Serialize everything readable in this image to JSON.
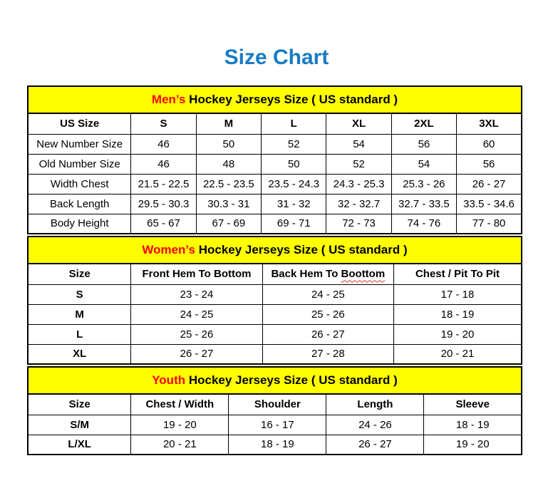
{
  "page_title": "Size Chart",
  "colors": {
    "title_blue": "#187bc4",
    "band_yellow": "#ffff00",
    "accent_red": "#ff0000",
    "squiggle_red": "#e03131",
    "border_black": "#000000"
  },
  "sections": {
    "mens": {
      "band_highlight": "Men’s",
      "band_rest": " Hockey Jerseys Size ( US standard )",
      "header": [
        "US Size",
        "S",
        "M",
        "L",
        "XL",
        "2XL",
        "3XL"
      ],
      "rows": [
        {
          "label": "New Number Size",
          "values": [
            "46",
            "50",
            "52",
            "54",
            "56",
            "60"
          ]
        },
        {
          "label": "Old Number Size",
          "values": [
            "46",
            "48",
            "50",
            "52",
            "54",
            "56"
          ]
        },
        {
          "label": "Width Chest",
          "values": [
            "21.5 - 22.5",
            "22.5 - 23.5",
            "23.5 - 24.3",
            "24.3 - 25.3",
            "25.3 - 26",
            "26 - 27"
          ]
        },
        {
          "label": "Back Length",
          "values": [
            "29.5 - 30.3",
            "30.3 - 31",
            "31 - 32",
            "32 - 32.7",
            "32.7 - 33.5",
            "33.5 - 34.6"
          ]
        },
        {
          "label": "Body Height",
          "values": [
            "65 - 67",
            "67 - 69",
            "69 - 71",
            "72 - 73",
            "74 - 76",
            "77 - 80"
          ]
        }
      ]
    },
    "womens": {
      "band_highlight": "Women’s",
      "band_rest": " Hockey Jerseys Size ( US standard )",
      "header_size": "Size",
      "header_front": "Front Hem To Bottom",
      "header_back_prefix": "Back Hem To ",
      "header_back_misspelled": "Boottom",
      "header_chest": "Chest / Pit To Pit",
      "rows": [
        {
          "label": "S",
          "values": [
            "23 - 24",
            "24 - 25",
            "17 - 18"
          ]
        },
        {
          "label": "M",
          "values": [
            "24 - 25",
            "25 - 26",
            "18 - 19"
          ]
        },
        {
          "label": "L",
          "values": [
            "25 - 26",
            "26 - 27",
            "19 - 20"
          ]
        },
        {
          "label": "XL",
          "values": [
            "26 - 27",
            "27 - 28",
            "20 - 21"
          ]
        }
      ]
    },
    "youth": {
      "band_highlight": "Youth",
      "band_rest": " Hockey Jerseys Size ( US standard )",
      "header": [
        "Size",
        "Chest / Width",
        "Shoulder",
        "Length",
        "Sleeve"
      ],
      "rows": [
        {
          "label": "S/M",
          "values": [
            "19 - 20",
            "16 - 17",
            "24 - 26",
            "18 - 19"
          ]
        },
        {
          "label": "L/XL",
          "values": [
            "20 - 21",
            "18 - 19",
            "26 - 27",
            "19 - 20"
          ]
        }
      ]
    }
  }
}
